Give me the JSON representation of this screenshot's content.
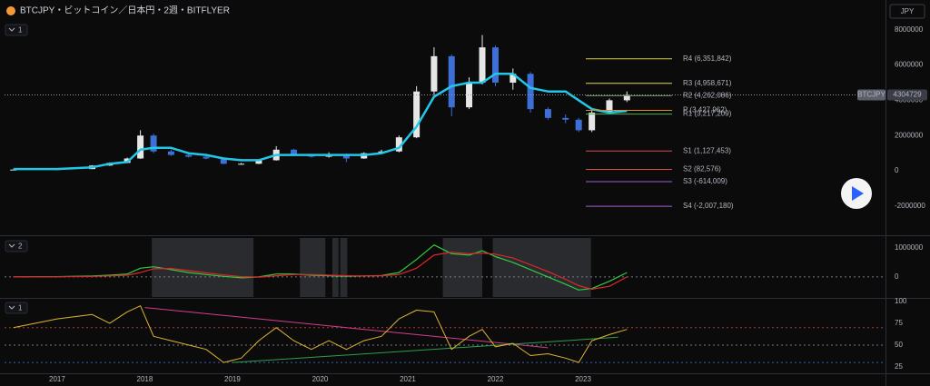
{
  "header": {
    "currency_button": "JPY"
  },
  "chart_data": [
    {
      "type": "candlestick",
      "title": "BTCJPY・ビットコイン／日本円・2週・BITFLYER",
      "pane_label": "1",
      "xlim": [
        2016.4,
        2026.45
      ],
      "ylim": [
        -3600000,
        8450000
      ],
      "yticks": [
        -2000000,
        0,
        2000000,
        4000000,
        6000000,
        8000000
      ],
      "up_color": "#e6e6e6",
      "down_color": "#3d6fd6",
      "x": [
        2016.5,
        2017.0,
        2017.4,
        2017.6,
        2017.8,
        2017.95,
        2018.1,
        2018.3,
        2018.5,
        2018.7,
        2018.9,
        2019.1,
        2019.3,
        2019.5,
        2019.7,
        2019.9,
        2020.1,
        2020.3,
        2020.5,
        2020.7,
        2020.9,
        2021.1,
        2021.3,
        2021.5,
        2021.7,
        2021.85,
        2022.0,
        2022.2,
        2022.4,
        2022.6,
        2022.8,
        2022.95,
        2023.1,
        2023.3,
        2023.5
      ],
      "open": [
        60000,
        70000,
        100000,
        300000,
        450000,
        700000,
        2000000,
        1100000,
        900000,
        800000,
        700000,
        400000,
        400000,
        600000,
        1200000,
        900000,
        800000,
        950000,
        700000,
        1000000,
        1100000,
        1900000,
        4500000,
        6500000,
        3600000,
        5000000,
        7000000,
        5000000,
        5500000,
        3500000,
        3000000,
        2900000,
        2300000,
        3300000,
        4000000
      ],
      "high": [
        75000,
        110000,
        320000,
        480000,
        750000,
        2300000,
        2100000,
        1200000,
        950000,
        850000,
        720000,
        450000,
        650000,
        1400000,
        1250000,
        950000,
        1050000,
        980000,
        1050000,
        1200000,
        2000000,
        4800000,
        7000000,
        6600000,
        5300000,
        7700000,
        7100000,
        5800000,
        5600000,
        3600000,
        3200000,
        3000000,
        3400000,
        4100000,
        4500000
      ],
      "low": [
        55000,
        65000,
        95000,
        280000,
        430000,
        680000,
        1000000,
        850000,
        750000,
        650000,
        380000,
        350000,
        380000,
        580000,
        850000,
        750000,
        750000,
        500000,
        680000,
        950000,
        1050000,
        1850000,
        4300000,
        3100000,
        3500000,
        4900000,
        4800000,
        4600000,
        3300000,
        2900000,
        2700000,
        2200000,
        2200000,
        3200000,
        3900000
      ],
      "close": [
        70000,
        100000,
        300000,
        450000,
        700000,
        2000000,
        1100000,
        900000,
        800000,
        700000,
        400000,
        400000,
        600000,
        1200000,
        900000,
        800000,
        950000,
        700000,
        1000000,
        1100000,
        1900000,
        4500000,
        6500000,
        3600000,
        5000000,
        7000000,
        5000000,
        5500000,
        3500000,
        3000000,
        2900000,
        2300000,
        3300000,
        4000000,
        4300000
      ],
      "series": [
        {
          "color": "#22c7e8",
          "width": 2.5,
          "values": [
            100000,
            100000,
            200000,
            400000,
            500000,
            1200000,
            1300000,
            1300000,
            1000000,
            900000,
            700000,
            600000,
            600000,
            900000,
            900000,
            900000,
            900000,
            900000,
            900000,
            1000000,
            1300000,
            2500000,
            4200000,
            4800000,
            5000000,
            5000000,
            5500000,
            5500000,
            4700000,
            4500000,
            4500000,
            4000000,
            3500000,
            3300000,
            3400000
          ]
        }
      ],
      "pivots": [
        {
          "value": 6351842,
          "label": "R4 (6,351,842)",
          "color": "#d6cf4a"
        },
        {
          "value": 4958671,
          "label": "R3 (4,958,671)",
          "color": "#e8d84a"
        },
        {
          "value": 4262086,
          "label": "R2 (4,262,086)",
          "color": "#6f9a6a"
        },
        {
          "value": 3427962,
          "label": "P (3,427,962)",
          "color": "#e08a2e"
        },
        {
          "value": 3217209,
          "label": "R1 (3,217,209)",
          "color": "#4caf50"
        },
        {
          "value": 1127453,
          "label": "S1 (1,127,453)",
          "color": "#e04b4b"
        },
        {
          "value": 82576,
          "label": "S2 (82,576)",
          "color": "#e04b4b"
        },
        {
          "value": -614009,
          "label": "S3 (-614,009)",
          "color": "#a25fd0"
        },
        {
          "value": -2007180,
          "label": "S4 (-2,007,180)",
          "color": "#a25fd0"
        }
      ],
      "last_price": {
        "symbol": "BTCJPY",
        "value": 4304729
      }
    },
    {
      "type": "line",
      "pane_label": "2",
      "xlim": [
        2016.4,
        2026.45
      ],
      "ylim": [
        -690000,
        1340000
      ],
      "yticks": [
        0,
        1000000
      ],
      "shaded": [
        [
          2018.08,
          2019.24
        ],
        [
          2019.77,
          2020.06
        ],
        [
          2020.14,
          2020.21
        ],
        [
          2020.23,
          2020.31
        ],
        [
          2021.4,
          2021.85
        ],
        [
          2021.97,
          2023.09
        ]
      ],
      "x": [
        2016.5,
        2017.0,
        2017.4,
        2017.6,
        2017.8,
        2017.95,
        2018.1,
        2018.3,
        2018.5,
        2018.7,
        2018.9,
        2019.1,
        2019.3,
        2019.5,
        2019.7,
        2019.9,
        2020.1,
        2020.3,
        2020.5,
        2020.7,
        2020.9,
        2021.1,
        2021.3,
        2021.5,
        2021.7,
        2021.85,
        2022.0,
        2022.2,
        2022.4,
        2022.6,
        2022.8,
        2022.95,
        2023.1,
        2023.3,
        2023.5
      ],
      "levels": [
        {
          "value": 0,
          "color": "#787b86"
        }
      ],
      "series": [
        {
          "color": "#2ecc40",
          "width": 1.2,
          "values": [
            0,
            10000,
            30000,
            60000,
            100000,
            300000,
            350000,
            250000,
            150000,
            80000,
            20000,
            -30000,
            0,
            100000,
            100000,
            60000,
            40000,
            20000,
            30000,
            50000,
            150000,
            600000,
            1100000,
            800000,
            750000,
            900000,
            700000,
            500000,
            250000,
            0,
            -250000,
            -450000,
            -400000,
            -150000,
            150000
          ]
        },
        {
          "color": "#e0262b",
          "width": 1.2,
          "values": [
            0,
            5000,
            15000,
            35000,
            60000,
            150000,
            280000,
            290000,
            220000,
            140000,
            70000,
            10000,
            -5000,
            40000,
            80000,
            80000,
            60000,
            40000,
            30000,
            40000,
            80000,
            300000,
            750000,
            850000,
            800000,
            820000,
            780000,
            650000,
            420000,
            180000,
            -80000,
            -300000,
            -420000,
            -320000,
            0
          ]
        }
      ]
    },
    {
      "type": "line",
      "pane_label": "1",
      "xlim": [
        2016.4,
        2026.45
      ],
      "ylim": [
        18.7,
        102
      ],
      "yticks": [
        25,
        50,
        75,
        100
      ],
      "xticks": [
        2017,
        2018,
        2019,
        2020,
        2021,
        2022,
        2023
      ],
      "x": [
        2016.5,
        2017.0,
        2017.4,
        2017.6,
        2017.8,
        2017.95,
        2018.1,
        2018.3,
        2018.5,
        2018.7,
        2018.9,
        2019.1,
        2019.3,
        2019.5,
        2019.7,
        2019.9,
        2020.1,
        2020.3,
        2020.5,
        2020.7,
        2020.9,
        2021.1,
        2021.3,
        2021.5,
        2021.7,
        2021.85,
        2022.0,
        2022.2,
        2022.4,
        2022.6,
        2022.8,
        2022.95,
        2023.1,
        2023.3,
        2023.5
      ],
      "levels": [
        {
          "value": 70,
          "color": "#b03a3a"
        },
        {
          "value": 50,
          "color": "#787b86"
        },
        {
          "value": 30,
          "color": "#3a5fb0"
        }
      ],
      "trendlines": [
        {
          "x": [
            2018.0,
            2022.6
          ],
          "y": [
            93,
            47
          ],
          "color": "#d63c8c"
        },
        {
          "x": [
            2019.0,
            2023.4
          ],
          "y": [
            30,
            59
          ],
          "color": "#2e9e4a"
        }
      ],
      "series": [
        {
          "color": "#e0b431",
          "width": 1,
          "values": [
            70,
            80,
            85,
            75,
            88,
            95,
            60,
            55,
            50,
            45,
            30,
            35,
            55,
            70,
            55,
            45,
            55,
            45,
            55,
            60,
            80,
            90,
            88,
            45,
            60,
            68,
            48,
            52,
            38,
            40,
            35,
            30,
            55,
            62,
            68
          ]
        }
      ]
    }
  ]
}
